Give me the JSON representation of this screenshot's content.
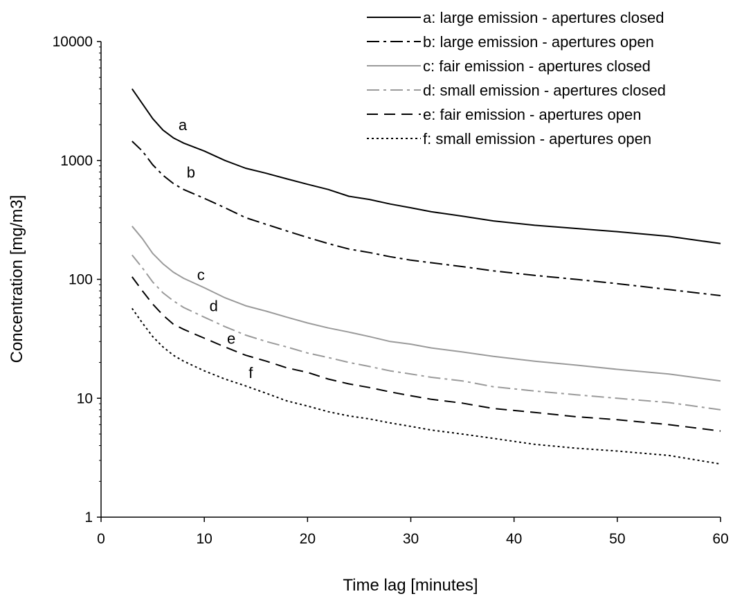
{
  "chart_data": {
    "type": "line",
    "xlabel": "Time lag [minutes]",
    "ylabel": "Concentration [mg/m3]",
    "xlim": [
      0,
      60
    ],
    "ylim": [
      1,
      10000
    ],
    "yscale": "log",
    "grid": false,
    "legend_position": "top-right",
    "x_ticks": [
      0,
      10,
      20,
      30,
      40,
      50,
      60
    ],
    "x_tick_labels": [
      "0",
      "10",
      "20",
      "30",
      "40",
      "50",
      "60"
    ],
    "y_ticks": [
      1,
      10,
      100,
      1000,
      10000
    ],
    "y_tick_labels": [
      "1",
      "10",
      "100",
      "1000",
      "10000"
    ],
    "series": [
      {
        "name": "a: large emission - apertures closed",
        "label": "a",
        "label_at": [
          7.5,
          2000
        ],
        "color": "#000000",
        "dash": "",
        "points": [
          [
            3,
            4000
          ],
          [
            4,
            3000
          ],
          [
            5,
            2250
          ],
          [
            6,
            1800
          ],
          [
            7,
            1550
          ],
          [
            8,
            1400
          ],
          [
            10,
            1200
          ],
          [
            12,
            1000
          ],
          [
            14,
            860
          ],
          [
            16,
            780
          ],
          [
            18,
            700
          ],
          [
            20,
            630
          ],
          [
            22,
            570
          ],
          [
            24,
            500
          ],
          [
            26,
            470
          ],
          [
            28,
            430
          ],
          [
            30,
            400
          ],
          [
            32,
            370
          ],
          [
            35,
            340
          ],
          [
            38,
            310
          ],
          [
            42,
            285
          ],
          [
            46,
            268
          ],
          [
            50,
            252
          ],
          [
            55,
            230
          ],
          [
            60,
            200
          ]
        ]
      },
      {
        "name": "b: large emission - apertures open",
        "label": "b",
        "label_at": [
          8.3,
          800
        ],
        "color": "#000000",
        "dash": "18 6 4 6",
        "points": [
          [
            3,
            1450
          ],
          [
            4,
            1200
          ],
          [
            5,
            920
          ],
          [
            6,
            750
          ],
          [
            7,
            640
          ],
          [
            8,
            570
          ],
          [
            10,
            480
          ],
          [
            12,
            400
          ],
          [
            14,
            330
          ],
          [
            16,
            290
          ],
          [
            18,
            255
          ],
          [
            20,
            225
          ],
          [
            22,
            200
          ],
          [
            24,
            180
          ],
          [
            26,
            168
          ],
          [
            28,
            155
          ],
          [
            30,
            145
          ],
          [
            32,
            138
          ],
          [
            35,
            128
          ],
          [
            38,
            118
          ],
          [
            42,
            108
          ],
          [
            46,
            100
          ],
          [
            50,
            92
          ],
          [
            55,
            82
          ],
          [
            60,
            73
          ]
        ]
      },
      {
        "name": "c: fair emission - apertures closed",
        "label": "c",
        "label_at": [
          9.3,
          110
        ],
        "color": "#9a9a9a",
        "dash": "",
        "points": [
          [
            3,
            280
          ],
          [
            4,
            220
          ],
          [
            5,
            165
          ],
          [
            6,
            135
          ],
          [
            7,
            115
          ],
          [
            8,
            102
          ],
          [
            10,
            85
          ],
          [
            12,
            70
          ],
          [
            14,
            60
          ],
          [
            16,
            54
          ],
          [
            18,
            48
          ],
          [
            20,
            43
          ],
          [
            22,
            39
          ],
          [
            24,
            36
          ],
          [
            26,
            33
          ],
          [
            28,
            30
          ],
          [
            30,
            28.5
          ],
          [
            32,
            26.5
          ],
          [
            35,
            24.5
          ],
          [
            38,
            22.5
          ],
          [
            42,
            20.5
          ],
          [
            46,
            19
          ],
          [
            50,
            17.5
          ],
          [
            55,
            16
          ],
          [
            60,
            14
          ]
        ]
      },
      {
        "name": "d: small emission - apertures closed",
        "label": "d",
        "label_at": [
          10.5,
          60
        ],
        "color": "#9a9a9a",
        "dash": "18 6 4 6",
        "points": [
          [
            3,
            160
          ],
          [
            4,
            125
          ],
          [
            5,
            95
          ],
          [
            6,
            77
          ],
          [
            7,
            66
          ],
          [
            8,
            58
          ],
          [
            10,
            48
          ],
          [
            12,
            40
          ],
          [
            14,
            34
          ],
          [
            16,
            30
          ],
          [
            18,
            27
          ],
          [
            20,
            24
          ],
          [
            22,
            22
          ],
          [
            24,
            20
          ],
          [
            26,
            18.5
          ],
          [
            28,
            17
          ],
          [
            30,
            16
          ],
          [
            32,
            15
          ],
          [
            35,
            14
          ],
          [
            38,
            12.5
          ],
          [
            42,
            11.5
          ],
          [
            46,
            10.7
          ],
          [
            50,
            10
          ],
          [
            55,
            9.2
          ],
          [
            60,
            8
          ]
        ]
      },
      {
        "name": "e: fair emission - apertures open",
        "label": "e",
        "label_at": [
          12.2,
          32
        ],
        "color": "#000000",
        "dash": "16 9",
        "points": [
          [
            3,
            105
          ],
          [
            4,
            80
          ],
          [
            5,
            62
          ],
          [
            6,
            50
          ],
          [
            7,
            42
          ],
          [
            8,
            38
          ],
          [
            10,
            32
          ],
          [
            12,
            27
          ],
          [
            14,
            23
          ],
          [
            16,
            20.5
          ],
          [
            18,
            18
          ],
          [
            20,
            16.5
          ],
          [
            22,
            14.5
          ],
          [
            24,
            13.2
          ],
          [
            26,
            12.3
          ],
          [
            28,
            11.3
          ],
          [
            30,
            10.5
          ],
          [
            32,
            9.8
          ],
          [
            35,
            9.1
          ],
          [
            38,
            8.2
          ],
          [
            42,
            7.6
          ],
          [
            46,
            7
          ],
          [
            50,
            6.6
          ],
          [
            55,
            6
          ],
          [
            60,
            5.3
          ]
        ]
      },
      {
        "name": "f: small emission - apertures open",
        "label": "f",
        "label_at": [
          14.3,
          16.5
        ],
        "color": "#000000",
        "dash": "3 4",
        "points": [
          [
            3,
            57
          ],
          [
            4,
            43
          ],
          [
            5,
            33
          ],
          [
            6,
            27
          ],
          [
            7,
            23
          ],
          [
            8,
            20.5
          ],
          [
            10,
            17
          ],
          [
            12,
            14.5
          ],
          [
            14,
            12.7
          ],
          [
            16,
            11
          ],
          [
            18,
            9.5
          ],
          [
            20,
            8.6
          ],
          [
            22,
            7.7
          ],
          [
            24,
            7.1
          ],
          [
            26,
            6.7
          ],
          [
            28,
            6.2
          ],
          [
            30,
            5.8
          ],
          [
            32,
            5.4
          ],
          [
            35,
            5
          ],
          [
            38,
            4.6
          ],
          [
            42,
            4.1
          ],
          [
            46,
            3.8
          ],
          [
            50,
            3.6
          ],
          [
            55,
            3.3
          ],
          [
            60,
            2.8
          ]
        ]
      }
    ]
  }
}
